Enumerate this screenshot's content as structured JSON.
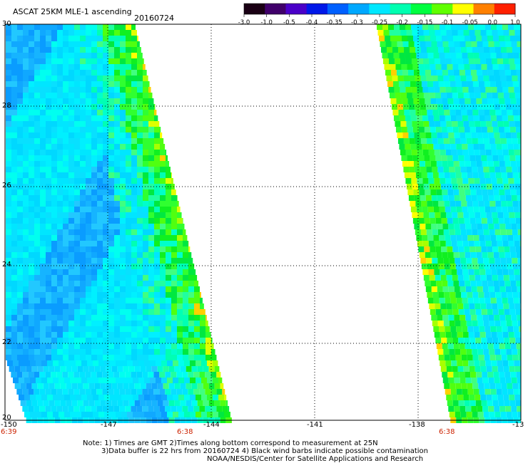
{
  "header": {
    "title": "ASCAT 25KM MLE-1 ascending",
    "date": "20160724"
  },
  "colorbar": {
    "labels": [
      "-3.0",
      "-1.0",
      "-0.5",
      "-0.4",
      "-0.35",
      "-0.3",
      "-0.25",
      "-0.2",
      "-0.15",
      "-0.1",
      "-0.05",
      "0.0",
      "1.0"
    ],
    "colors": [
      "#1a0014",
      "#40006a",
      "#4a00c8",
      "#0018e8",
      "#0060ff",
      "#00a8ff",
      "#00e8ff",
      "#00ffb0",
      "#00ff40",
      "#60ff00",
      "#ffff00",
      "#ff8000",
      "#ff2000"
    ]
  },
  "axes": {
    "lat_labels": [
      "30",
      "28",
      "26",
      "24",
      "22",
      "20"
    ],
    "lon_labels": [
      "-150",
      "-147",
      "-144",
      "-141",
      "-138",
      "-13"
    ]
  },
  "times": {
    "left": "6:39",
    "mid": "6:38",
    "right": "6:38"
  },
  "notes": {
    "line1": "Note: 1) Times are GMT 2)Times along bottom correspond to measurement at 25N",
    "line2": "3)Data buffer is 22 hrs from 20160724 4) Black wind barbs indicate possible contamination",
    "line3": "NOAA/NESDIS/Center for Satellite Applications and Research"
  }
}
